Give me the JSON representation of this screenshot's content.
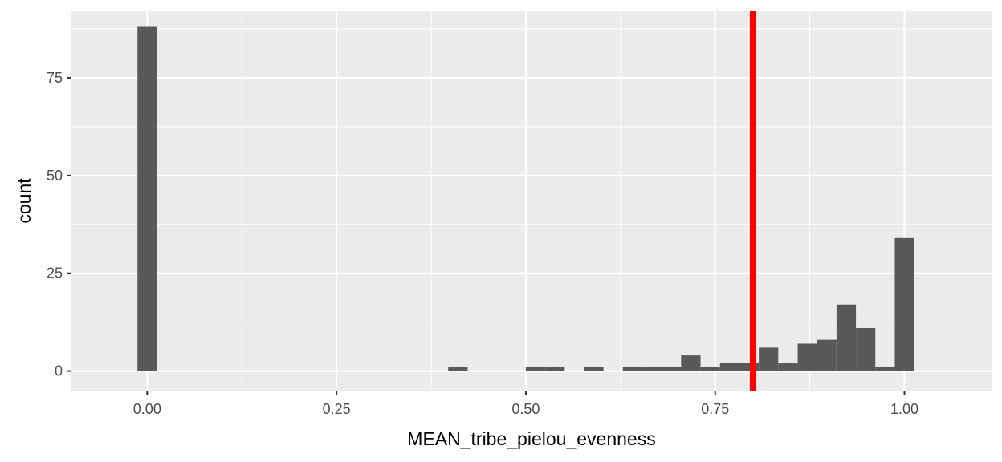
{
  "chart_data": {
    "type": "bar",
    "title": "",
    "xlabel": "MEAN_tribe_pielou_evenness",
    "ylabel": "count",
    "xlim": [
      -0.1,
      1.115
    ],
    "ylim": [
      -5,
      92
    ],
    "bin_width": 0.02564,
    "x_ticks": [
      0.0,
      0.25,
      0.5,
      0.75,
      1.0
    ],
    "x_tick_labels": [
      "0.00",
      "0.25",
      "0.50",
      "0.75",
      "1.00"
    ],
    "y_ticks": [
      0,
      25,
      50,
      75
    ],
    "y_tick_labels": [
      "0",
      "25",
      "50",
      "75"
    ],
    "bins": [
      {
        "x": 0.0,
        "count": 88
      },
      {
        "x": 0.4103,
        "count": 1
      },
      {
        "x": 0.5128,
        "count": 1
      },
      {
        "x": 0.5385,
        "count": 1
      },
      {
        "x": 0.5897,
        "count": 1
      },
      {
        "x": 0.641,
        "count": 1
      },
      {
        "x": 0.6667,
        "count": 1
      },
      {
        "x": 0.6923,
        "count": 1
      },
      {
        "x": 0.7179,
        "count": 4
      },
      {
        "x": 0.7436,
        "count": 1
      },
      {
        "x": 0.7692,
        "count": 2
      },
      {
        "x": 0.7949,
        "count": 2
      },
      {
        "x": 0.8205,
        "count": 6
      },
      {
        "x": 0.8462,
        "count": 2
      },
      {
        "x": 0.8718,
        "count": 7
      },
      {
        "x": 0.8974,
        "count": 8
      },
      {
        "x": 0.9231,
        "count": 17
      },
      {
        "x": 0.9487,
        "count": 11
      },
      {
        "x": 0.9744,
        "count": 1
      },
      {
        "x": 1.0,
        "count": 34
      }
    ],
    "reference_line": {
      "x": 0.8,
      "color": "#ff0000"
    },
    "bar_color": "#595959",
    "panel_background": "#ebebeb",
    "grid": true
  }
}
